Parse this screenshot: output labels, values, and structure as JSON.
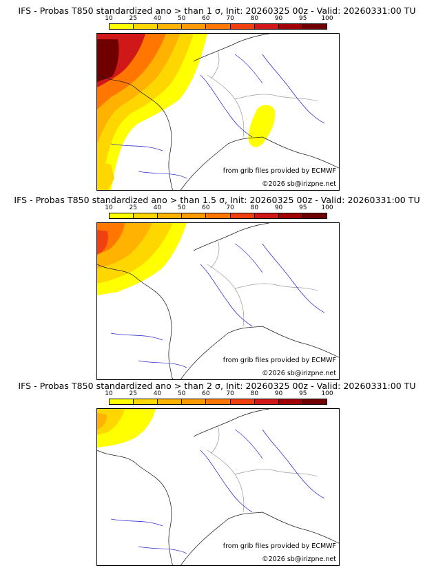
{
  "panels": [
    {
      "title": "IFS - Probas T850  standardized ano > than 1 σ, Init: 20260325 00z - Valid: 20260331:00 TU"
    },
    {
      "title": "IFS - Probas T850  standardized ano > than 1.5 σ, Init: 20260325 00z - Valid: 20260331:00 TU"
    },
    {
      "title": "IFS - Probas T850  standardized ano > than 2 σ, Init: 20260325 00z - Valid: 20260331:00 TU"
    }
  ],
  "colorbar": {
    "ticks": [
      "10",
      "25",
      "40",
      "50",
      "60",
      "70",
      "80",
      "90",
      "95",
      "100"
    ],
    "colors": [
      "#ffff00",
      "#ffd700",
      "#ffb300",
      "#ff9900",
      "#ff7700",
      "#f04010",
      "#d01818",
      "#a00000",
      "#700000"
    ]
  },
  "credits": {
    "source": "from grib files provided by ECMWF",
    "copyright": "©2026 sb@irizpne.net"
  }
}
